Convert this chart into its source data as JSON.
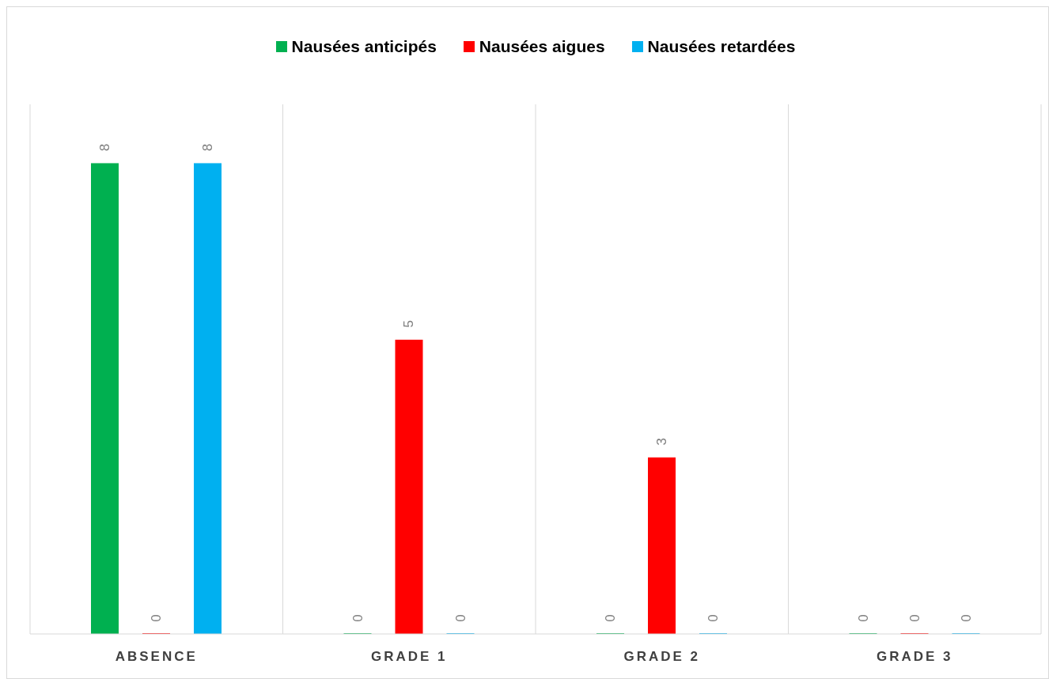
{
  "chart_data": {
    "type": "bar",
    "categories": [
      "ABSENCE",
      "GRADE 1",
      "GRADE 2",
      "GRADE 3"
    ],
    "series": [
      {
        "name": "Nausées anticipés",
        "color": "#00b050",
        "values": [
          8,
          0,
          0,
          0
        ]
      },
      {
        "name": "Nausées aigues",
        "color": "#ff0000",
        "values": [
          0,
          5,
          3,
          0
        ]
      },
      {
        "name": "Nausées retardées",
        "color": "#00b0f0",
        "values": [
          8,
          0,
          0,
          0
        ]
      }
    ],
    "ylim": [
      0,
      9
    ],
    "data_labels": true,
    "grid": "x",
    "legend": "top",
    "tick_labels": "x"
  }
}
